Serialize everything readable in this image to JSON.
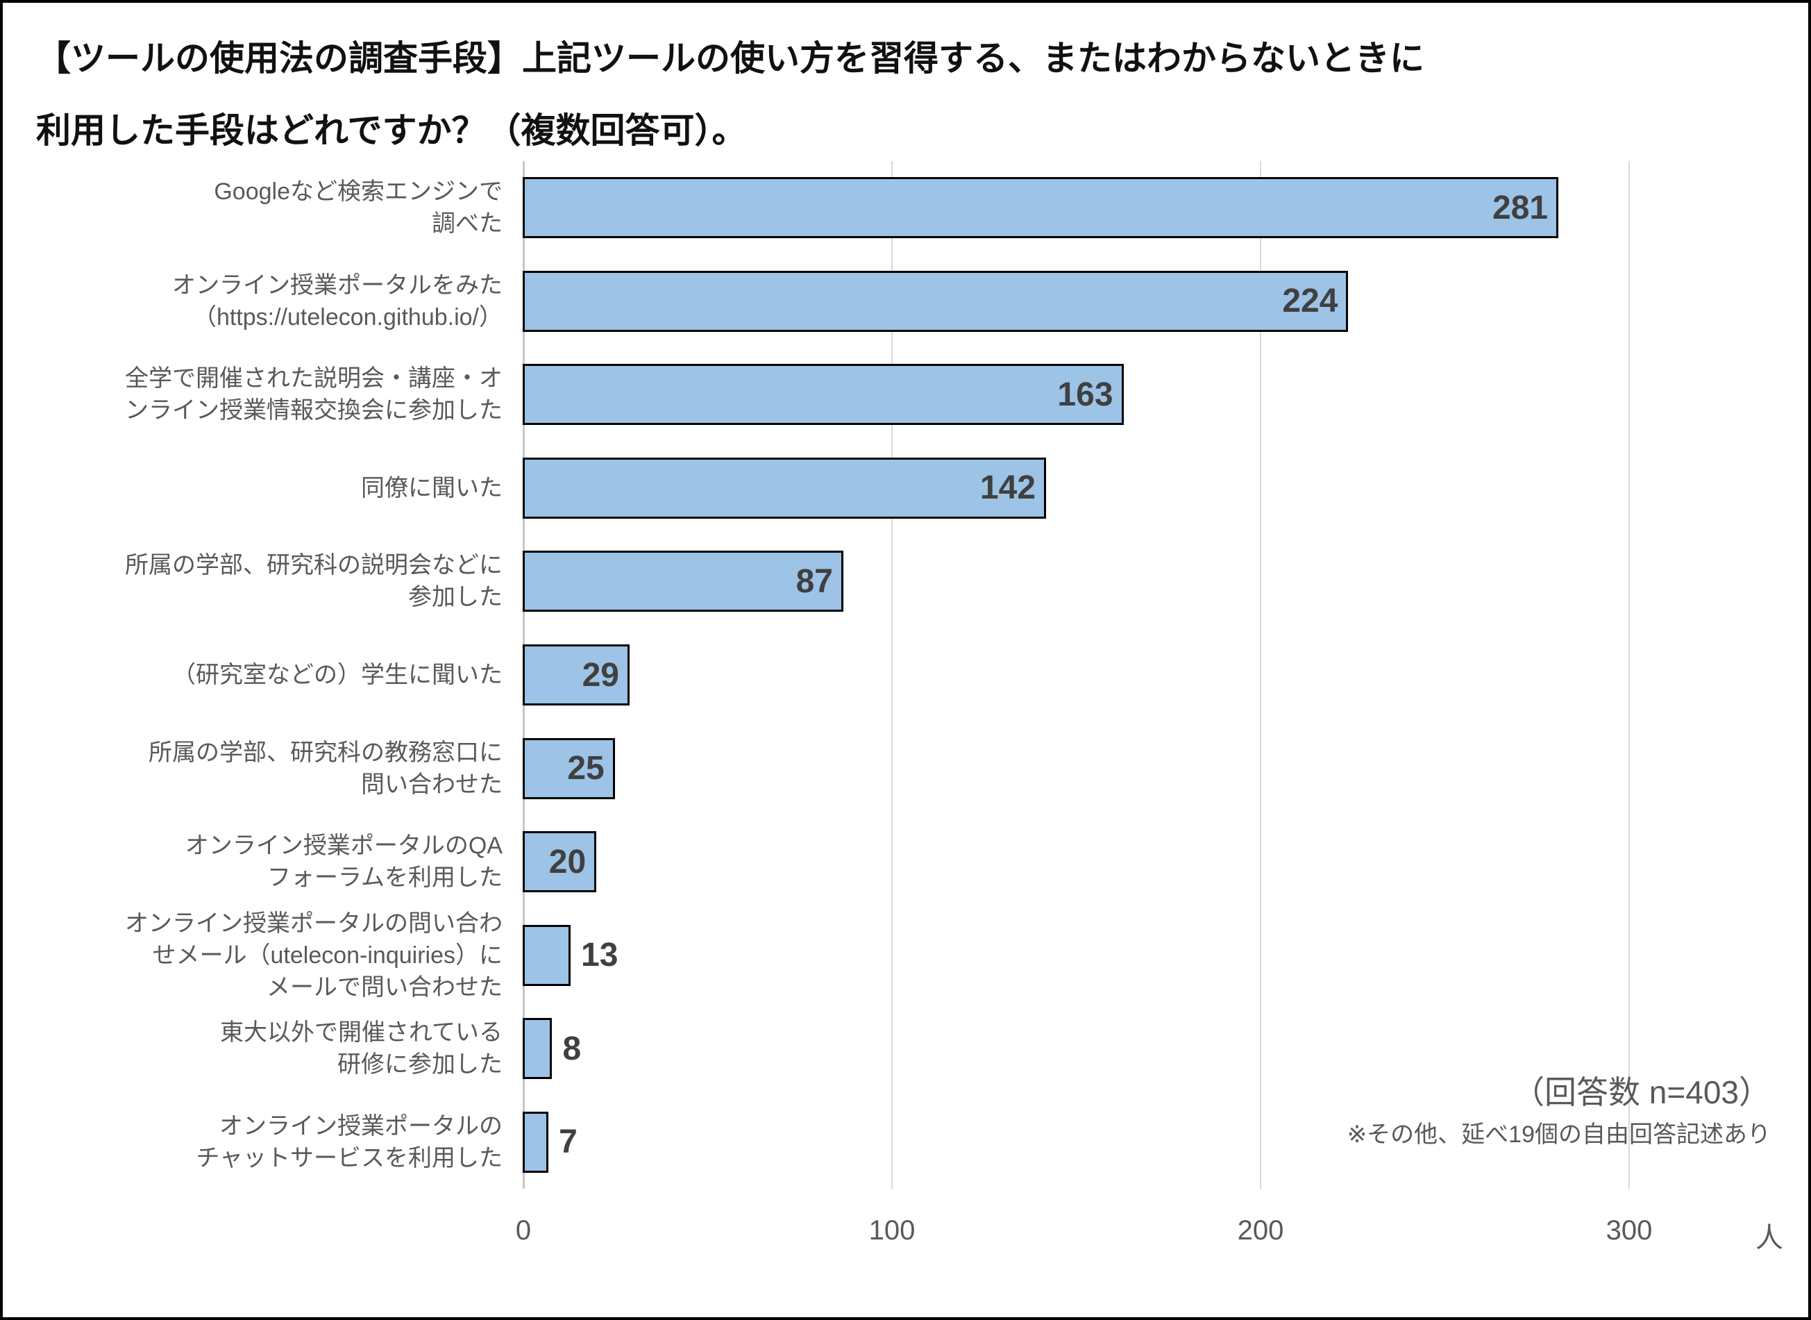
{
  "title": {
    "line1": "【ツールの使用法の調査手段】上記ツールの使い方を習得する、またはわからないときに",
    "line2": "利用した手段はどれですか？（複数回答可）。"
  },
  "chart_data": {
    "type": "bar",
    "orientation": "horizontal",
    "title": "【ツールの使用法の調査手段】上記ツールの使い方を習得する、またはわからないときに利用した手段はどれですか？（複数回答可）。",
    "categories": [
      "Googleなど検索エンジンで調べた",
      "オンライン授業ポータルをみた（https://utelecon.github.io/）",
      "全学で開催された説明会・講座・オンライン授業情報交換会に参加した",
      "同僚に聞いた",
      "所属の学部、研究科の説明会などに参加した",
      "（研究室などの）学生に聞いた",
      "所属の学部、研究科の教務窓口に問い合わせた",
      "オンライン授業ポータルのQAフォーラムを利用した",
      "オンライン授業ポータルの問い合わせメール（utelecon-inquiries）にメールで問い合わせた",
      "東大以外で開催されている研修に参加した",
      "オンライン授業ポータルのチャットサービスを利用した"
    ],
    "categories_lines": [
      [
        "Googleなど検索エンジンで",
        "調べた"
      ],
      [
        "オンライン授業ポータルをみた",
        "（https://utelecon.github.io/）"
      ],
      [
        "全学で開催された説明会・講座・オ",
        "ンライン授業情報交換会に参加した"
      ],
      [
        "同僚に聞いた"
      ],
      [
        "所属の学部、研究科の説明会などに",
        "参加した"
      ],
      [
        "（研究室などの）学生に聞いた"
      ],
      [
        "所属の学部、研究科の教務窓口に",
        "問い合わせた"
      ],
      [
        "オンライン授業ポータルのQA",
        "フォーラムを利用した"
      ],
      [
        "オンライン授業ポータルの問い合わ",
        "せメール（utelecon-inquiries）に",
        "メールで問い合わせた"
      ],
      [
        "東大以外で開催されている",
        "研修に参加した"
      ],
      [
        "オンライン授業ポータルの",
        "チャットサービスを利用した"
      ]
    ],
    "values": [
      281,
      224,
      163,
      142,
      87,
      29,
      25,
      20,
      13,
      8,
      7
    ],
    "x_ticks": [
      0,
      100,
      200,
      300
    ],
    "x_unit": "人",
    "xlim": [
      0,
      350
    ],
    "grid": "vertical-only",
    "legend": "none",
    "bar_color": "#9DC3E6",
    "bar_border_color": "#000000",
    "value_label_color": "#404040",
    "category_label_color": "#595959",
    "annotations": [
      "（回答数 n=403）",
      "※その他、延べ19個の自由回答記述あり"
    ]
  }
}
